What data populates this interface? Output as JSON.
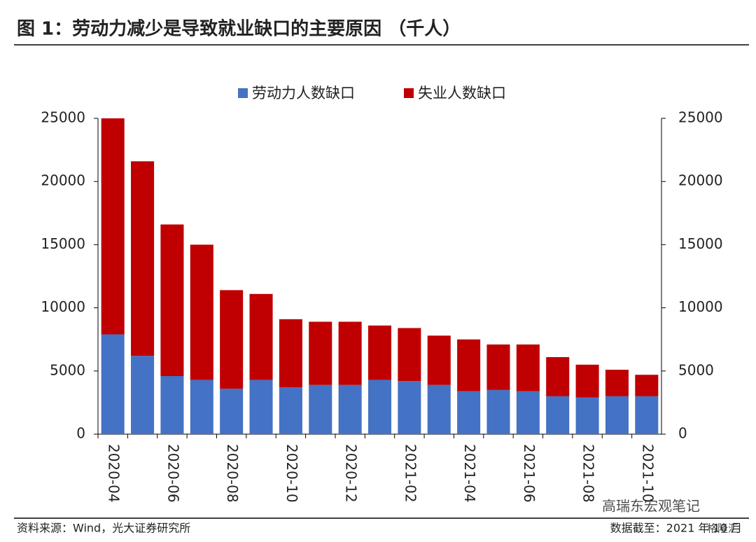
{
  "chart_data": {
    "type": "stacked-bar",
    "title": "图 1：劳动力减少是导致就业缺口的主要原因 （千人）",
    "source": "资料来源：Wind，光大证券研究所",
    "note": "数据截至：2021 年 10 月",
    "watermarks": [
      "高瑞东宏观笔记",
      "格隆汇"
    ],
    "categories": [
      "2020-04",
      null,
      "2020-06",
      null,
      "2020-08",
      null,
      "2020-10",
      null,
      "2020-12",
      null,
      "2021-02",
      null,
      "2021-04",
      null,
      "2021-06",
      null,
      "2021-08",
      null,
      "2021-10"
    ],
    "series": [
      {
        "name": "劳动力人数缺口",
        "color": "#4472c4",
        "values": [
          7900,
          6200,
          4600,
          4300,
          3600,
          4300,
          3700,
          3900,
          3900,
          4300,
          4200,
          3900,
          3400,
          3500,
          3400,
          3000,
          2900,
          3000,
          3000
        ]
      },
      {
        "name": "失业人数缺口",
        "color": "#c00000",
        "values": [
          17100,
          15400,
          12000,
          10700,
          7800,
          6800,
          5400,
          5000,
          5000,
          4300,
          4200,
          3900,
          4100,
          3600,
          3700,
          3100,
          2600,
          2100,
          1700
        ]
      }
    ],
    "ylim": [
      0,
      25000
    ],
    "yticks": [
      0,
      5000,
      10000,
      15000,
      20000,
      25000
    ],
    "y2lim": [
      0,
      25000
    ],
    "y2ticks": [
      0,
      5000,
      10000,
      15000,
      20000,
      25000
    ],
    "legend": "top"
  }
}
